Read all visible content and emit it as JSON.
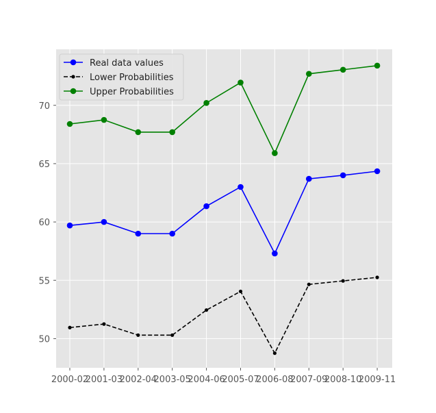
{
  "chart_data": {
    "type": "line",
    "categories": [
      "2000-02",
      "2001-03",
      "2002-04",
      "2003-05",
      "2004-06",
      "2005-07",
      "2006-08",
      "2007-09",
      "2008-10",
      "2009-11"
    ],
    "series": [
      {
        "name": "Real data values",
        "color": "#0000ff",
        "linestyle": "solid",
        "marker": "circle",
        "values": [
          59.7,
          60.0,
          59.0,
          59.0,
          61.35,
          63.0,
          57.3,
          63.7,
          64.0,
          64.35
        ]
      },
      {
        "name": "Lower Probabilities",
        "color": "#000000",
        "linestyle": "dashed",
        "marker": "small-circle",
        "values": [
          50.95,
          51.25,
          50.3,
          50.3,
          52.45,
          54.05,
          48.75,
          54.65,
          54.95,
          55.25
        ]
      },
      {
        "name": "Upper Probabilities",
        "color": "#008000",
        "linestyle": "solid",
        "marker": "circle",
        "values": [
          68.4,
          68.75,
          67.7,
          67.7,
          70.2,
          71.95,
          65.9,
          72.7,
          73.05,
          73.4
        ]
      }
    ],
    "yticks": [
      50,
      55,
      60,
      65,
      70
    ],
    "ylim": [
      47.5,
      74.8
    ],
    "grid": true,
    "legend_position": "top-left",
    "background": "#e5e5e5",
    "title": "",
    "xlabel": "",
    "ylabel": ""
  }
}
